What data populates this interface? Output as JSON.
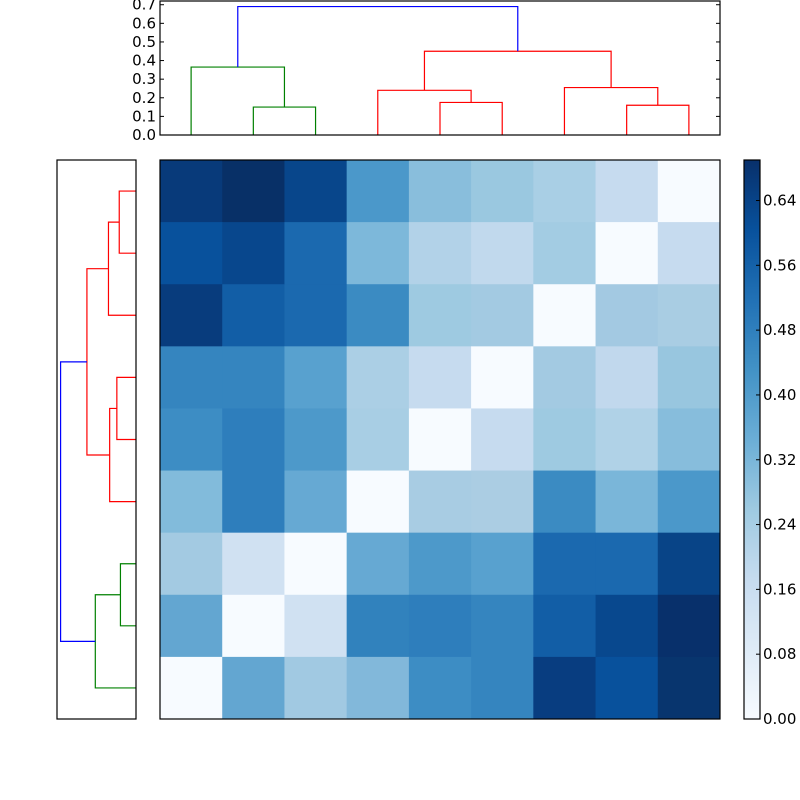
{
  "chart_data": [
    {
      "type": "dendrogram",
      "orientation": "top",
      "title": "",
      "ylim": [
        0.0,
        0.72
      ],
      "yticks": [
        0.0,
        0.1,
        0.2,
        0.3,
        0.4,
        0.5,
        0.6,
        0.7
      ],
      "ytick_labels": [
        "0.0",
        "0.1",
        "0.2",
        "0.3",
        "0.4",
        "0.5",
        "0.6",
        "0.7"
      ],
      "leaf_count": 9,
      "links": [
        {
          "left": 1,
          "right": 2,
          "height": 0.15,
          "color": "#008000"
        },
        {
          "left": 0,
          "right": 1.5,
          "height": 0.365,
          "color": "#008000"
        },
        {
          "left": 4,
          "right": 5,
          "height": 0.175,
          "color": "#ff0000"
        },
        {
          "left": 3,
          "right": 4.5,
          "height": 0.24,
          "color": "#ff0000"
        },
        {
          "left": 7,
          "right": 8,
          "height": 0.16,
          "color": "#ff0000"
        },
        {
          "left": 6,
          "right": 7.5,
          "height": 0.255,
          "color": "#ff0000"
        },
        {
          "left": 3.75,
          "right": 6.75,
          "height": 0.45,
          "color": "#ff0000"
        },
        {
          "left": 0.75,
          "right": 5.25,
          "height": 0.69,
          "color": "#0000ff"
        }
      ]
    },
    {
      "type": "dendrogram",
      "orientation": "left",
      "leaf_count": 9,
      "links": [
        {
          "top": 0,
          "bottom": 1,
          "depth": 0.14,
          "color": "#ff0000"
        },
        {
          "top": 0.5,
          "bottom": 2,
          "depth": 0.23,
          "color": "#ff0000"
        },
        {
          "top": 3,
          "bottom": 4,
          "depth": 0.16,
          "color": "#ff0000"
        },
        {
          "top": 3.5,
          "bottom": 5,
          "depth": 0.22,
          "color": "#ff0000"
        },
        {
          "top": 1.25,
          "bottom": 4.25,
          "depth": 0.41,
          "color": "#ff0000"
        },
        {
          "top": 6,
          "bottom": 7,
          "depth": 0.13,
          "color": "#008000"
        },
        {
          "top": 6.5,
          "bottom": 8,
          "depth": 0.34,
          "color": "#008000"
        },
        {
          "top": 2.75,
          "bottom": 7.25,
          "depth": 0.63,
          "color": "#0000ff"
        }
      ]
    },
    {
      "type": "heatmap",
      "colormap": "Blues",
      "rows": 9,
      "cols": 9,
      "values": [
        [
          0.66,
          0.69,
          0.62,
          0.38,
          0.3,
          0.28,
          0.24,
          0.15,
          0.0
        ],
        [
          0.58,
          0.62,
          0.52,
          0.32,
          0.22,
          0.18,
          0.26,
          0.0,
          0.15
        ],
        [
          0.64,
          0.55,
          0.52,
          0.42,
          0.27,
          0.26,
          0.0,
          0.26,
          0.24
        ],
        [
          0.44,
          0.44,
          0.36,
          0.24,
          0.16,
          0.0,
          0.26,
          0.18,
          0.28
        ],
        [
          0.42,
          0.46,
          0.38,
          0.24,
          0.0,
          0.16,
          0.27,
          0.22,
          0.3
        ],
        [
          0.31,
          0.46,
          0.35,
          0.0,
          0.24,
          0.24,
          0.42,
          0.32,
          0.38
        ],
        [
          0.26,
          0.13,
          0.0,
          0.35,
          0.38,
          0.37,
          0.52,
          0.52,
          0.62
        ],
        [
          0.36,
          0.0,
          0.13,
          0.46,
          0.46,
          0.44,
          0.55,
          0.62,
          0.7
        ],
        [
          0.0,
          0.36,
          0.26,
          0.31,
          0.42,
          0.44,
          0.64,
          0.58,
          0.68
        ]
      ],
      "colors": [
        [
          "#083a7a",
          "#083067",
          "#08468b",
          "#4b98ca",
          "#89bedc",
          "#9ac8e0",
          "#a9cfe5",
          "#c6dbef",
          "#f7fbff"
        ],
        [
          "#08519c",
          "#08478d",
          "#1b69af",
          "#7db8da",
          "#b2d2e8",
          "#c1d9ed",
          "#a3cce3",
          "#f7fbff",
          "#c6dbef"
        ],
        [
          "#083c7d",
          "#125ea6",
          "#1b69af",
          "#3b8bc2",
          "#9ecae1",
          "#a3cae2",
          "#f7fbff",
          "#a3c9e2",
          "#a9cde3"
        ],
        [
          "#3585bf",
          "#3585bf",
          "#58a1cf",
          "#abcfe5",
          "#c6dbef",
          "#f7fbff",
          "#a3cae2",
          "#c1d8ed",
          "#98c6df"
        ],
        [
          "#3d8dc4",
          "#2e7ebc",
          "#4d99ca",
          "#a8cee4",
          "#f7fbff",
          "#c6dbef",
          "#9ecae1",
          "#b0d2e7",
          "#87bddc"
        ],
        [
          "#82bbdb",
          "#2e7ebc",
          "#66a9d3",
          "#f7fbff",
          "#a8cce3",
          "#abcde3",
          "#3b8bc2",
          "#7ab6d9",
          "#4b98ca"
        ],
        [
          "#a3cae2",
          "#d0e1f2",
          "#f7fbff",
          "#66a9d3",
          "#4d99ca",
          "#58a1cf",
          "#1b69af",
          "#1b69af",
          "#084487"
        ],
        [
          "#63a6d1",
          "#f7fbff",
          "#d0e1f2",
          "#3182bd",
          "#2e7ebc",
          "#3585bf",
          "#125ea6",
          "#08488e",
          "#08306b"
        ],
        [
          "#f7fbff",
          "#63a6d1",
          "#a1c9e2",
          "#82b8da",
          "#3d8dc4",
          "#3585bf",
          "#083d80",
          "#08519c",
          "#08356e"
        ]
      ]
    },
    {
      "type": "colorbar",
      "colormap": "Blues",
      "range": [
        0.0,
        0.69
      ],
      "ticks": [
        0.0,
        0.08,
        0.16,
        0.24,
        0.32,
        0.4,
        0.48,
        0.56,
        0.64
      ],
      "tick_labels": [
        "0.00",
        "0.08",
        "0.16",
        "0.24",
        "0.32",
        "0.40",
        "0.48",
        "0.56",
        "0.64"
      ]
    }
  ]
}
